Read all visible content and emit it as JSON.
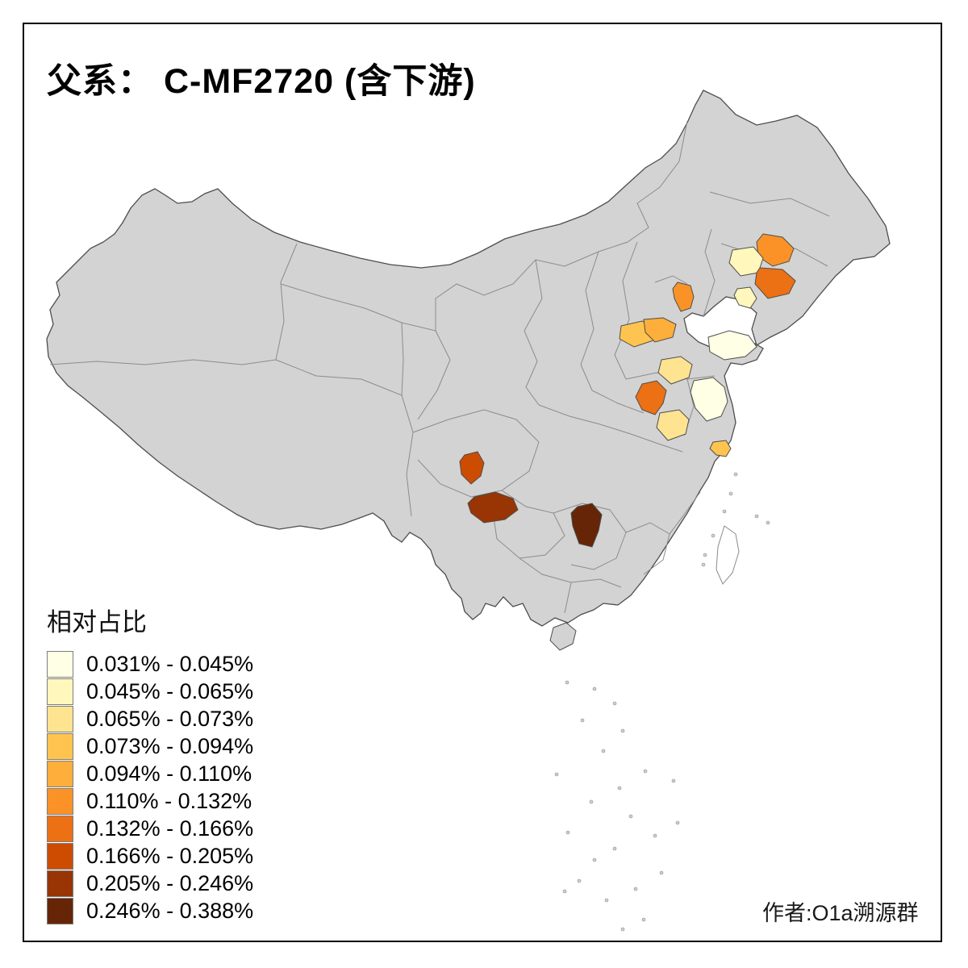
{
  "title": "父系： C-MF2720 (含下游)",
  "credit": "作者:O1a溯源群",
  "legend": {
    "title": "相对占比",
    "classes": [
      {
        "label": "0.031% - 0.045%",
        "color": "#FFFFE5"
      },
      {
        "label": "0.045% - 0.065%",
        "color": "#FFF7BC"
      },
      {
        "label": "0.065% - 0.073%",
        "color": "#FEE391"
      },
      {
        "label": "0.073% - 0.094%",
        "color": "#FEC44F"
      },
      {
        "label": "0.094% - 0.110%",
        "color": "#FDAE3B"
      },
      {
        "label": "0.110% - 0.132%",
        "color": "#FB9227"
      },
      {
        "label": "0.132% - 0.166%",
        "color": "#EC7014"
      },
      {
        "label": "0.166% - 0.205%",
        "color": "#CC4C02"
      },
      {
        "label": "0.205% - 0.246%",
        "color": "#993404"
      },
      {
        "label": "0.246% - 0.388%",
        "color": "#662506"
      }
    ]
  },
  "map": {
    "land_fill": "#D3D3D3",
    "land_border": "#4D4D4D",
    "province_border": "#8C8C8C",
    "sea_fill": "#FFFFFF",
    "regions": [
      {
        "id": "r1",
        "class_index": 5
      },
      {
        "id": "r2",
        "class_index": 1
      },
      {
        "id": "r3",
        "class_index": 6
      },
      {
        "id": "r4",
        "class_index": 1
      },
      {
        "id": "r5",
        "class_index": 5
      },
      {
        "id": "r6",
        "class_index": 3
      },
      {
        "id": "r7",
        "class_index": 4
      },
      {
        "id": "r8",
        "class_index": 0
      },
      {
        "id": "r9",
        "class_index": 2
      },
      {
        "id": "r10",
        "class_index": 0
      },
      {
        "id": "r11",
        "class_index": 2
      },
      {
        "id": "r12",
        "class_index": 3
      },
      {
        "id": "r13",
        "class_index": 6
      },
      {
        "id": "r14",
        "class_index": 7
      },
      {
        "id": "r15",
        "class_index": 8
      },
      {
        "id": "r16",
        "class_index": 9
      }
    ]
  }
}
